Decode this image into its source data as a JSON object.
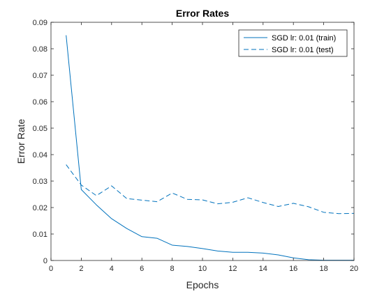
{
  "chart_data": {
    "type": "line",
    "title": "Error Rates",
    "xlabel": "Epochs",
    "ylabel": "Error Rate",
    "xlim": [
      0,
      20
    ],
    "ylim": [
      0,
      0.09
    ],
    "xticks": [
      0,
      2,
      4,
      6,
      8,
      10,
      12,
      14,
      16,
      18,
      20
    ],
    "yticks": [
      0,
      0.01,
      0.02,
      0.03,
      0.04,
      0.05,
      0.06,
      0.07,
      0.08,
      0.09
    ],
    "xtick_labels": [
      "0",
      "2",
      "4",
      "6",
      "8",
      "10",
      "12",
      "14",
      "16",
      "18",
      "20"
    ],
    "ytick_labels": [
      "0",
      "0.01",
      "0.02",
      "0.03",
      "0.04",
      "0.05",
      "0.06",
      "0.07",
      "0.08",
      "0.09"
    ],
    "grid": false,
    "legend_position": "top-right",
    "x": [
      1,
      2,
      3,
      4,
      5,
      6,
      7,
      8,
      9,
      10,
      11,
      12,
      13,
      14,
      15,
      16,
      17,
      18,
      19,
      20
    ],
    "series": [
      {
        "name": "SGD lr: 0.01 (train)",
        "style": "solid",
        "color": "#0072bd",
        "values": [
          0.0851,
          0.0268,
          0.021,
          0.0158,
          0.0121,
          0.009,
          0.0084,
          0.0058,
          0.0053,
          0.0045,
          0.0036,
          0.0031,
          0.0031,
          0.0028,
          0.0021,
          0.001,
          0.0003,
          0.0001,
          0.0001,
          0.0001
        ]
      },
      {
        "name": "SGD lr: 0.01 (test)",
        "style": "dashed",
        "color": "#0072bd",
        "values": [
          0.0362,
          0.0285,
          0.0245,
          0.0282,
          0.0234,
          0.0228,
          0.0222,
          0.0255,
          0.0231,
          0.0229,
          0.0214,
          0.022,
          0.0237,
          0.0219,
          0.0204,
          0.0216,
          0.0203,
          0.0182,
          0.0177,
          0.0178
        ]
      }
    ]
  }
}
